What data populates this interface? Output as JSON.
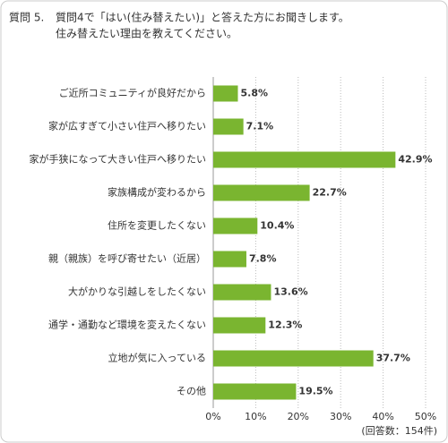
{
  "chart_data": {
    "type": "barh",
    "question_label": "質問 5.",
    "title_lines": [
      "質問4で「はい(住み替えたい)」と答えた方にお聞きします。",
      "住み替えたい理由を教えてください。"
    ],
    "categories": [
      "ご近所コミュニティが良好だから",
      "家が広すぎて小さい住戸へ移りたい",
      "家が手狭になって大きい住戸へ移りたい",
      "家族構成が変わるから",
      "住所を変更したくない",
      "親（親族）を呼び寄せたい（近居）",
      "大がかりな引越しをしたくない",
      "通学・通勤など環境を変えたくない",
      "立地が気に入っている",
      "その他"
    ],
    "values": [
      5.8,
      7.1,
      42.9,
      22.7,
      10.4,
      7.8,
      13.6,
      12.3,
      37.7,
      19.5
    ],
    "value_labels": [
      "5.8%",
      "7.1%",
      "42.9%",
      "22.7%",
      "10.4%",
      "7.8%",
      "13.6%",
      "12.3%",
      "37.7%",
      "19.5%"
    ],
    "color": "#7ab530",
    "xlim": [
      0,
      50
    ],
    "xticks": [
      {
        "value": 0,
        "label": "0%"
      },
      {
        "value": 10,
        "label": "10%"
      },
      {
        "value": 20,
        "label": "20%"
      },
      {
        "value": 30,
        "label": "30%"
      },
      {
        "value": 40,
        "label": "40%"
      },
      {
        "value": 50,
        "label": "50%"
      }
    ],
    "grid": true,
    "note": "(回答数：154件)"
  }
}
